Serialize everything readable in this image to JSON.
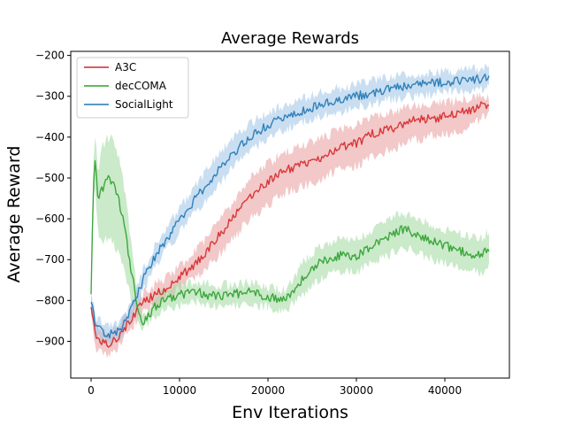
{
  "chart_data": {
    "type": "line",
    "title": "Average Rewards",
    "xlabel": "Env Iterations",
    "ylabel": "Average Reward",
    "xlim": [
      -2300,
      47300
    ],
    "ylim": [
      -990,
      -190
    ],
    "xticks": [
      0,
      10000,
      20000,
      30000,
      40000
    ],
    "xtick_labels": [
      "0",
      "10000",
      "20000",
      "30000",
      "40000"
    ],
    "yticks": [
      -900,
      -800,
      -700,
      -600,
      -500,
      -400,
      -300,
      -200
    ],
    "ytick_labels": [
      "−900",
      "−800",
      "−700",
      "−600",
      "−500",
      "−400",
      "−300",
      "−200"
    ],
    "grid": false,
    "legend_position": "top-left",
    "series": [
      {
        "name": "A3C",
        "color": "#d62728",
        "band_color": "#e89a9c",
        "x": [
          0,
          500,
          1000,
          2000,
          3000,
          4000,
          5000,
          6000,
          7000,
          8000,
          10000,
          12000,
          14000,
          16000,
          18000,
          20000,
          22000,
          24000,
          26000,
          28000,
          30000,
          32000,
          34000,
          36000,
          38000,
          40000,
          42000,
          44000,
          45000
        ],
        "values": [
          -810,
          -885,
          -895,
          -905,
          -890,
          -860,
          -830,
          -800,
          -790,
          -775,
          -745,
          -705,
          -655,
          -600,
          -545,
          -510,
          -480,
          -465,
          -450,
          -425,
          -415,
          -390,
          -380,
          -360,
          -355,
          -350,
          -340,
          -325,
          -320
        ],
        "lower": [
          -840,
          -915,
          -925,
          -935,
          -920,
          -885,
          -855,
          -825,
          -815,
          -800,
          -775,
          -740,
          -700,
          -650,
          -600,
          -565,
          -535,
          -520,
          -505,
          -480,
          -470,
          -445,
          -430,
          -410,
          -400,
          -395,
          -380,
          -355,
          -345
        ],
        "upper": [
          -785,
          -860,
          -870,
          -880,
          -865,
          -835,
          -805,
          -778,
          -765,
          -750,
          -718,
          -675,
          -620,
          -560,
          -500,
          -465,
          -435,
          -420,
          -400,
          -385,
          -370,
          -345,
          -340,
          -325,
          -320,
          -315,
          -310,
          -300,
          -300
        ]
      },
      {
        "name": "decCOMA",
        "color": "#2ca02c",
        "band_color": "#9fd89f",
        "x": [
          0,
          200,
          400,
          800,
          1200,
          1600,
          2000,
          2500,
          3000,
          3500,
          4000,
          4500,
          5000,
          5500,
          6000,
          7000,
          8000,
          10000,
          12000,
          14000,
          16000,
          18000,
          20000,
          22000,
          24000,
          26000,
          28000,
          30000,
          32000,
          34000,
          35000,
          36000,
          38000,
          40000,
          42000,
          44000,
          45000
        ],
        "values": [
          -780,
          -560,
          -440,
          -560,
          -530,
          -515,
          -500,
          -510,
          -540,
          -590,
          -650,
          -720,
          -780,
          -840,
          -855,
          -820,
          -800,
          -785,
          -780,
          -790,
          -785,
          -780,
          -790,
          -800,
          -745,
          -705,
          -690,
          -690,
          -665,
          -640,
          -625,
          -630,
          -650,
          -665,
          -680,
          -690,
          -670
        ],
        "lower": [
          -800,
          -610,
          -500,
          -640,
          -650,
          -650,
          -650,
          -660,
          -680,
          -710,
          -750,
          -790,
          -820,
          -855,
          -870,
          -840,
          -825,
          -810,
          -805,
          -815,
          -812,
          -808,
          -815,
          -825,
          -785,
          -745,
          -730,
          -730,
          -705,
          -685,
          -670,
          -675,
          -695,
          -710,
          -720,
          -730,
          -715
        ],
        "upper": [
          -760,
          -510,
          -390,
          -480,
          -430,
          -410,
          -400,
          -410,
          -440,
          -490,
          -560,
          -660,
          -740,
          -820,
          -840,
          -800,
          -778,
          -760,
          -755,
          -765,
          -760,
          -755,
          -765,
          -775,
          -705,
          -665,
          -650,
          -650,
          -625,
          -600,
          -585,
          -590,
          -610,
          -625,
          -640,
          -650,
          -630
        ]
      },
      {
        "name": "SocialLight",
        "color": "#1f77b4",
        "band_color": "#9cc3e6",
        "x": [
          0,
          500,
          1000,
          2000,
          3000,
          4000,
          5000,
          6000,
          7000,
          8000,
          10000,
          12000,
          14000,
          16000,
          18000,
          20000,
          22000,
          24000,
          26000,
          28000,
          30000,
          32000,
          34000,
          36000,
          38000,
          40000,
          42000,
          44000,
          45000
        ],
        "values": [
          -800,
          -860,
          -870,
          -885,
          -875,
          -850,
          -800,
          -745,
          -700,
          -665,
          -605,
          -545,
          -490,
          -440,
          -400,
          -370,
          -350,
          -335,
          -320,
          -310,
          -300,
          -290,
          -280,
          -275,
          -270,
          -265,
          -262,
          -258,
          -255
        ],
        "lower": [
          -820,
          -880,
          -890,
          -905,
          -895,
          -870,
          -825,
          -770,
          -728,
          -692,
          -635,
          -578,
          -525,
          -475,
          -435,
          -402,
          -380,
          -365,
          -350,
          -340,
          -328,
          -318,
          -308,
          -302,
          -296,
          -290,
          -287,
          -283,
          -280
        ],
        "upper": [
          -780,
          -840,
          -850,
          -865,
          -855,
          -830,
          -775,
          -720,
          -672,
          -638,
          -575,
          -512,
          -455,
          -405,
          -365,
          -338,
          -320,
          -305,
          -290,
          -280,
          -272,
          -262,
          -252,
          -248,
          -244,
          -240,
          -237,
          -233,
          -230
        ]
      }
    ]
  }
}
